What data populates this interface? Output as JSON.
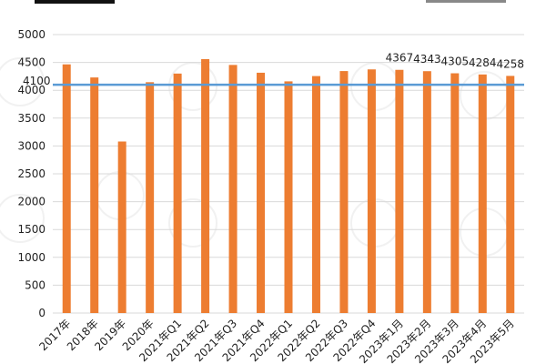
{
  "chart_data": {
    "type": "bar",
    "categories": [
      "2017年",
      "2018年",
      "2019年",
      "2020年",
      "2021年Q1",
      "2021年Q2",
      "2021年Q3",
      "2021年Q4",
      "2022年Q1",
      "2022年Q2",
      "2022年Q3",
      "2022年Q4",
      "2023年1月",
      "2023年2月",
      "2023年3月",
      "2023年4月",
      "2023年5月"
    ],
    "series": [
      {
        "values": [
          4465,
          4230,
          3080,
          4145,
          4300,
          4560,
          4455,
          4315,
          4160,
          4255,
          4345,
          4375,
          4367,
          4343,
          4305,
          4284,
          4258
        ],
        "color": "#ed7d31"
      }
    ],
    "data_labels": [
      "4367",
      "4343",
      "4305",
      "4284",
      "4258"
    ],
    "data_label_start_index": 12,
    "reference_line": {
      "value": 4100,
      "label": "4100",
      "color": "#5b9bd5"
    },
    "ylim": [
      0,
      5000
    ],
    "yticks": [
      "0",
      "500",
      "1000",
      "1500",
      "2000",
      "2500",
      "3000",
      "3500",
      "4000",
      "4500",
      "5000"
    ],
    "grid": true,
    "title": "",
    "xlabel": "",
    "ylabel": ""
  }
}
